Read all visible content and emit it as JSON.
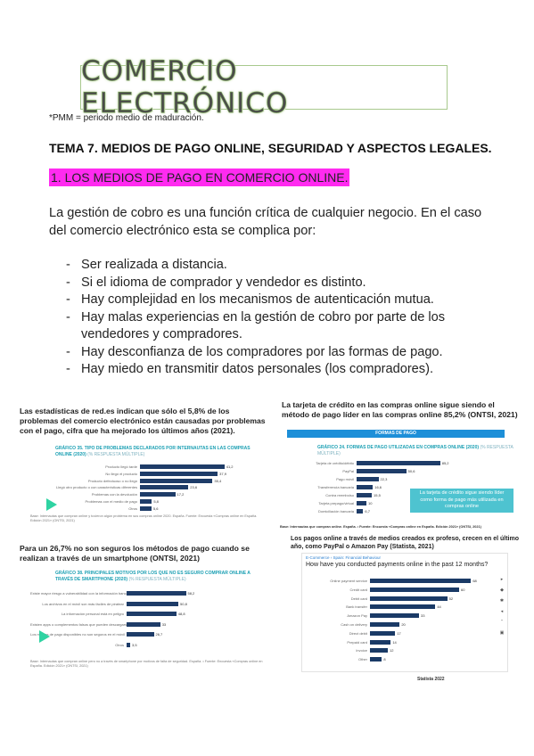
{
  "doc": {
    "title": "COMERCIO ELECTRÓNICO",
    "note": "*PMM = periodo medio de maduración.",
    "tema": "TEMA 7. MEDIOS DE PAGO ONLINE, SEGURIDAD Y ASPECTOS LEGALES.",
    "section": "1. LOS MEDIOS DE PAGO EN COMERCIO ONLINE.",
    "intro": "La gestión de cobro es una función crítica de cualquier negocio. En el caso del comercio electrónico esta se complica por:",
    "bullets": [
      "Ser realizada a distancia.",
      "Si el idioma de comprador y vendedor es distinto.",
      "Hay complejidad en los mecanismos de autenticación mutua.",
      "Hay malas experiencias en la gestión de cobro por parte de los vendedores y compradores.",
      "Hay desconfianza de los compradores por las formas de pago.",
      "Hay miedo en transmitir datos personales (los compradores)."
    ]
  },
  "panels": {
    "p1": {
      "caption": "Las estadísticas de red.es indican que sólo el 5,8% de los problemas del comercio electrónico están causadas por problemas con el pago, cifra que ha mejorado los últimos años (2021).",
      "chart_title": "GRÁFICO 35. TIPO DE PROBLEMAS DECLARADOS POR INTERNAUTAS EN LAS COMPRAS ONLINE (2020)",
      "chart_sub": "(% RESPUESTA MÚLTIPLE)",
      "source": "Base: Internautas que compran online y tuvieron algún problema en sus compras online 2020. España. Fuente: Encuesta «Compras online en España. Edición 2021» (ONTSI, 2021)"
    },
    "p2": {
      "caption": "La tarjeta de crédito en las compras online sigue siendo el método de pago líder en las compras online 85,2% (ONTSI, 2021)",
      "header": "FORMAS DE PAGO",
      "chart_title": "GRÁFICO 24. FORMAS DE PAGO UTILIZADAS EN COMPRAS ONLINE (2020)",
      "chart_sub": "(% RESPUESTA MÚLTIPLE)",
      "callout": "La tarjeta de crédito sigue siendo líder como forma de pago más utilizada en compras online",
      "source": "Base: Internautas que compran online. España. • Fuente: Encuesta «Compras online en España. Edición 2021» (ONTSI, 2021)"
    },
    "p3": {
      "caption": "Para un 26,7% no son seguros los métodos de pago cuando se realizan a través de un smartphone (ONTSI, 2021)",
      "chart_title": "GRÁFICO 38. PRINCIPALES MOTIVOS POR LOS QUE NO ES SEGURO COMPRAR ONLINE A TRAVÉS DE SMARTPHONE (2020)",
      "chart_sub": "(% RESPUESTA MÚLTIPLE)",
      "source": "Base: Internautas que compran online pero no a través de smartphone por motivos de falta de seguridad. España. • Fuente: Encuesta «Compras online en España. Edición 2021» (ONTSI, 2021)"
    },
    "p4": {
      "caption": "Los pagos online a través de medios creados ex profeso, crecen en el último año, como PayPal o Amazon Pay (Statista, 2021)",
      "breadcrumb": "E-Commerce › Spain: Financial Behaviour",
      "question": "How have you conducted payments online in the past 12 months?",
      "footer": "Statista 2022"
    }
  },
  "chart_data": [
    {
      "type": "bar",
      "id": "p1",
      "categories": [
        "Producto llegó tarde",
        "No llegó el producto",
        "Producto defectuoso o no llegó",
        "Llegó otro producto o con características diferentes",
        "Problemas con la devolución",
        "Problemas con el medio de pago",
        "Otros"
      ],
      "values": [
        41.2,
        37.9,
        35.4,
        23.6,
        17.2,
        5.8,
        5.6
      ]
    },
    {
      "type": "bar",
      "id": "p2",
      "categories": [
        "Tarjeta de crédito/débito",
        "PayPal",
        "Pago móvil",
        "Transferencia bancaria",
        "Contra reembolso",
        "Tarjeta prepago/virtual",
        "Domiciliación bancaria"
      ],
      "values": [
        85.2,
        50.6,
        22.3,
        16.6,
        15.5,
        10.0,
        6.7
      ]
    },
    {
      "type": "bar",
      "id": "p3",
      "categories": [
        "Existe mayor riesgo a vulnerabilidad con la información bancaria",
        "Los archivos en el móvil son más fáciles de piratear",
        "La información personal está en peligro",
        "Existen apps o complementos falsos que pueden descargarse",
        "Los medios de pago disponibles no son seguros en el móvil",
        "Otros"
      ],
      "values": [
        58.2,
        50.8,
        48.8,
        33.0,
        26.7,
        3.5
      ]
    },
    {
      "type": "bar",
      "id": "p4",
      "categories": [
        "Online payment service",
        "Credit card",
        "Debit card",
        "Bank transfer",
        "Amazon Pay",
        "Cash on delivery",
        "Direct debit",
        "Prepaid card",
        "Invoice",
        "Other"
      ],
      "values": [
        68,
        60,
        52,
        44,
        33,
        20,
        17,
        14,
        12,
        8
      ]
    }
  ]
}
